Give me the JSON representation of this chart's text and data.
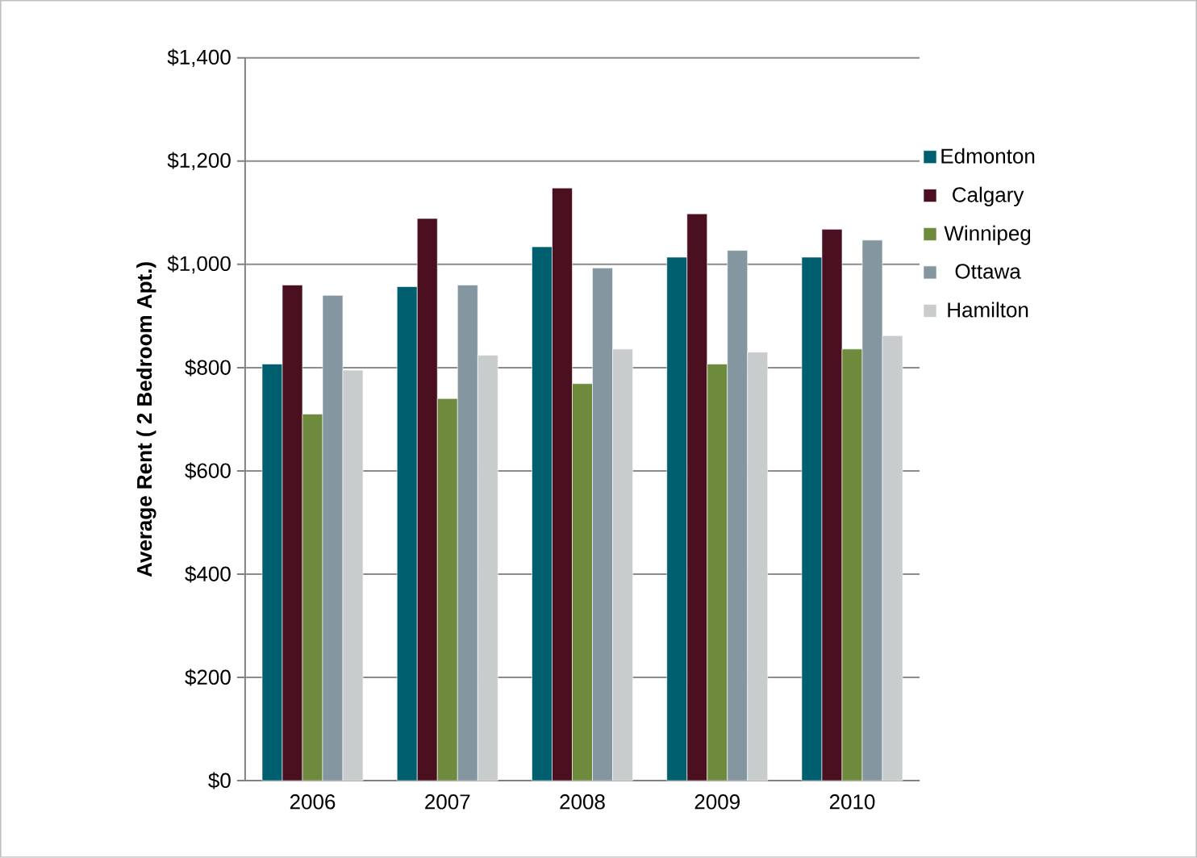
{
  "chart_data": {
    "type": "bar",
    "ylabel": "Average Rent ( 2 Bedroom Apt.)",
    "categories": [
      "2006",
      "2007",
      "2008",
      "2009",
      "2010"
    ],
    "series": [
      {
        "name": "Edmonton",
        "color": "#005f6e",
        "values": [
          807,
          957,
          1034,
          1014,
          1014
        ]
      },
      {
        "name": "Calgary",
        "color": "#4a1020",
        "values": [
          960,
          1089,
          1148,
          1098,
          1068
        ]
      },
      {
        "name": "Winnipeg",
        "color": "#6e8b3d",
        "values": [
          710,
          740,
          769,
          807,
          836
        ]
      },
      {
        "name": "Ottawa",
        "color": "#8497a0",
        "values": [
          940,
          960,
          993,
          1027,
          1047
        ]
      },
      {
        "name": "Hamilton",
        "color": "#c8cccc",
        "values": [
          795,
          824,
          836,
          830,
          862
        ]
      }
    ],
    "ylim": [
      0,
      1400
    ],
    "yticks": [
      {
        "value": 0,
        "label": "$0"
      },
      {
        "value": 200,
        "label": "$200"
      },
      {
        "value": 400,
        "label": "$400"
      },
      {
        "value": 600,
        "label": "$600"
      },
      {
        "value": 800,
        "label": "$800"
      },
      {
        "value": 1000,
        "label": "$1,000"
      },
      {
        "value": 1200,
        "label": "$1,200"
      },
      {
        "value": 1400,
        "label": "$1,400"
      }
    ],
    "grid": "y",
    "legend": "right"
  }
}
